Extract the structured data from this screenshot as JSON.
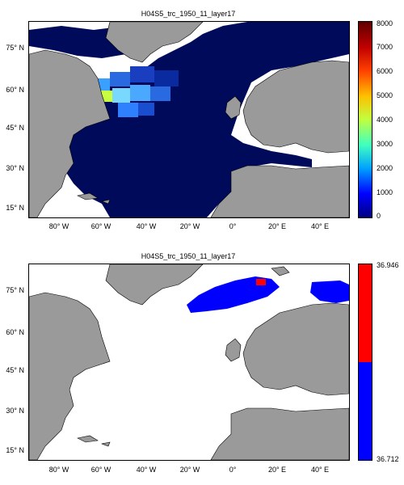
{
  "maps": [
    {
      "title": "H04S5_trc_1950_11_layer17",
      "lat_labels": [
        "75° N",
        "60° N",
        "45° N",
        "30° N",
        "15° N"
      ],
      "lon_labels": [
        "80° W",
        "60° W",
        "40° W",
        "20° W",
        "0°",
        "20° E",
        "40° E"
      ],
      "colorbar": {
        "type": "continuous",
        "min": 0,
        "max": 8000,
        "tick_labels": [
          "8000",
          "7000",
          "6000",
          "5000",
          "4000",
          "3000",
          "2000",
          "1000",
          "0"
        ]
      }
    },
    {
      "title": "H04S5_trc_1950_11_layer17",
      "lat_labels": [
        "75° N",
        "60° N",
        "45° N",
        "30° N",
        "15° N"
      ],
      "lon_labels": [
        "80° W",
        "60° W",
        "40° W",
        "20° W",
        "0°",
        "20° E",
        "40° E"
      ],
      "colorbar": {
        "type": "two-class",
        "top_label": "36.946",
        "bottom_label": "36.712",
        "colors": [
          "#ff0000",
          "#0000ff"
        ]
      }
    }
  ],
  "colors": {
    "land": "#9a9a9a",
    "ocean_data": "#000a5a",
    "no_data": "#ffffff",
    "high_class": "#ff0000",
    "low_class": "#0000ff"
  }
}
